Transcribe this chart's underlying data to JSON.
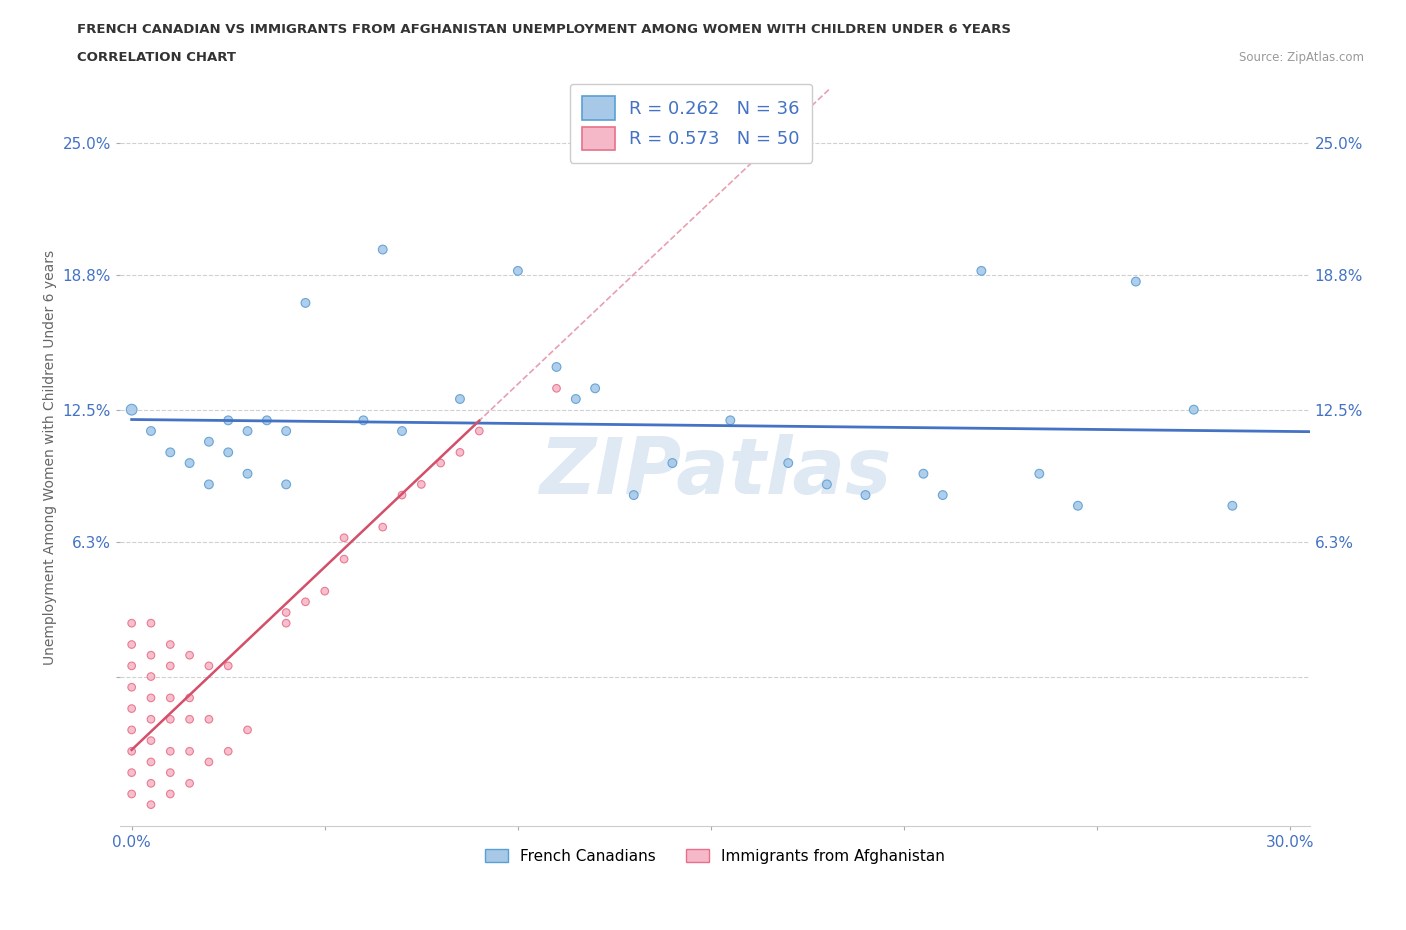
{
  "title_line1": "FRENCH CANADIAN VS IMMIGRANTS FROM AFGHANISTAN UNEMPLOYMENT AMONG WOMEN WITH CHILDREN UNDER 6 YEARS",
  "title_line2": "CORRELATION CHART",
  "source": "Source: ZipAtlas.com",
  "ylabel": "Unemployment Among Women with Children Under 6 years",
  "xlim": [
    -0.003,
    0.305
  ],
  "ylim": [
    -0.07,
    0.275
  ],
  "ytick_positions": [
    0.0,
    0.063,
    0.125,
    0.188,
    0.25
  ],
  "ytick_labels": [
    "",
    "6.3%",
    "12.5%",
    "18.8%",
    "25.0%"
  ],
  "xtick_positions": [
    0.0,
    0.05,
    0.1,
    0.15,
    0.2,
    0.25,
    0.3
  ],
  "xtick_labels": [
    "0.0%",
    "",
    "",
    "",
    "",
    "",
    "30.0%"
  ],
  "watermark": "ZIPatlas",
  "blue_R": 0.262,
  "blue_N": 36,
  "pink_R": 0.573,
  "pink_N": 50,
  "blue_color": "#a8c8e8",
  "pink_color": "#f4b8c8",
  "blue_edge_color": "#5a9fd4",
  "pink_edge_color": "#e8708a",
  "blue_line_color": "#4472c4",
  "pink_line_color": "#d4506a",
  "pink_dash_color": "#e8a0b0",
  "grid_color": "#d0d0d0",
  "blue_scatter": [
    [
      0.0,
      0.125
    ],
    [
      0.005,
      0.115
    ],
    [
      0.01,
      0.105
    ],
    [
      0.015,
      0.1
    ],
    [
      0.02,
      0.11
    ],
    [
      0.02,
      0.09
    ],
    [
      0.025,
      0.12
    ],
    [
      0.025,
      0.105
    ],
    [
      0.03,
      0.115
    ],
    [
      0.03,
      0.095
    ],
    [
      0.035,
      0.12
    ],
    [
      0.04,
      0.115
    ],
    [
      0.04,
      0.09
    ],
    [
      0.045,
      0.175
    ],
    [
      0.06,
      0.12
    ],
    [
      0.065,
      0.2
    ],
    [
      0.07,
      0.115
    ],
    [
      0.085,
      0.13
    ],
    [
      0.1,
      0.19
    ],
    [
      0.11,
      0.145
    ],
    [
      0.115,
      0.13
    ],
    [
      0.12,
      0.135
    ],
    [
      0.13,
      0.085
    ],
    [
      0.14,
      0.1
    ],
    [
      0.155,
      0.12
    ],
    [
      0.17,
      0.1
    ],
    [
      0.18,
      0.09
    ],
    [
      0.19,
      0.085
    ],
    [
      0.205,
      0.095
    ],
    [
      0.21,
      0.085
    ],
    [
      0.22,
      0.19
    ],
    [
      0.235,
      0.095
    ],
    [
      0.245,
      0.08
    ],
    [
      0.26,
      0.185
    ],
    [
      0.275,
      0.125
    ],
    [
      0.285,
      0.08
    ]
  ],
  "blue_sizes": [
    60,
    40,
    40,
    40,
    40,
    40,
    40,
    40,
    40,
    40,
    40,
    40,
    40,
    40,
    40,
    40,
    40,
    40,
    40,
    40,
    40,
    40,
    40,
    40,
    40,
    40,
    40,
    40,
    40,
    40,
    40,
    40,
    40,
    40,
    40,
    40
  ],
  "pink_scatter": [
    [
      0.0,
      -0.055
    ],
    [
      0.0,
      -0.045
    ],
    [
      0.0,
      -0.035
    ],
    [
      0.0,
      -0.025
    ],
    [
      0.0,
      -0.015
    ],
    [
      0.0,
      -0.005
    ],
    [
      0.0,
      0.005
    ],
    [
      0.0,
      0.015
    ],
    [
      0.0,
      0.025
    ],
    [
      0.005,
      -0.06
    ],
    [
      0.005,
      -0.05
    ],
    [
      0.005,
      -0.04
    ],
    [
      0.005,
      -0.03
    ],
    [
      0.005,
      -0.02
    ],
    [
      0.005,
      -0.01
    ],
    [
      0.005,
      0.0
    ],
    [
      0.005,
      0.01
    ],
    [
      0.005,
      0.025
    ],
    [
      0.01,
      -0.055
    ],
    [
      0.01,
      -0.045
    ],
    [
      0.01,
      -0.035
    ],
    [
      0.01,
      -0.02
    ],
    [
      0.01,
      -0.01
    ],
    [
      0.01,
      0.005
    ],
    [
      0.01,
      0.015
    ],
    [
      0.015,
      -0.05
    ],
    [
      0.015,
      -0.035
    ],
    [
      0.015,
      -0.02
    ],
    [
      0.015,
      -0.01
    ],
    [
      0.015,
      0.01
    ],
    [
      0.02,
      -0.04
    ],
    [
      0.02,
      -0.02
    ],
    [
      0.02,
      0.005
    ],
    [
      0.025,
      -0.035
    ],
    [
      0.025,
      0.005
    ],
    [
      0.03,
      -0.025
    ],
    [
      0.04,
      0.025
    ],
    [
      0.04,
      0.03
    ],
    [
      0.045,
      0.035
    ],
    [
      0.05,
      0.04
    ],
    [
      0.055,
      0.055
    ],
    [
      0.055,
      0.065
    ],
    [
      0.065,
      0.07
    ],
    [
      0.07,
      0.085
    ],
    [
      0.075,
      0.09
    ],
    [
      0.08,
      0.1
    ],
    [
      0.085,
      0.105
    ],
    [
      0.09,
      0.115
    ],
    [
      0.11,
      0.135
    ],
    [
      0.13,
      0.265
    ]
  ],
  "pink_sizes": [
    30,
    30,
    30,
    30,
    30,
    30,
    30,
    30,
    30,
    30,
    30,
    30,
    30,
    30,
    30,
    30,
    30,
    30,
    30,
    30,
    30,
    30,
    30,
    30,
    30,
    30,
    30,
    30,
    30,
    30,
    30,
    30,
    30,
    30,
    30,
    30,
    30,
    30,
    30,
    30,
    30,
    30,
    30,
    30,
    30,
    30,
    30,
    30,
    30,
    30
  ]
}
